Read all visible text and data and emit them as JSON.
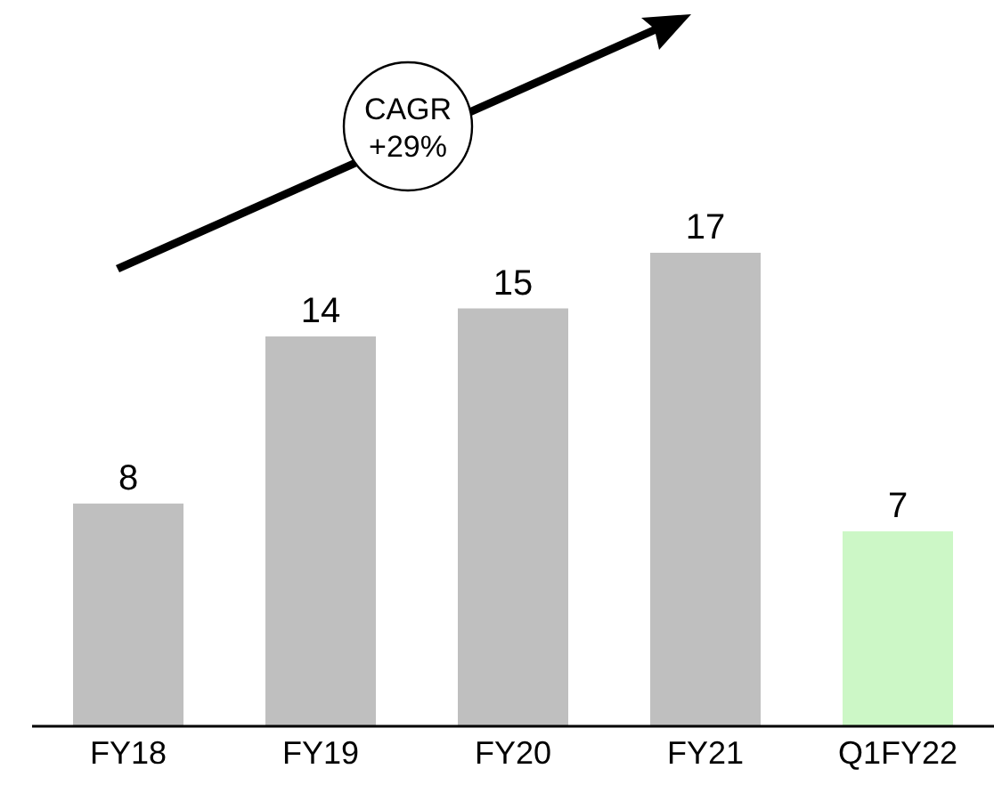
{
  "chart_data": {
    "type": "bar",
    "categories": [
      "FY18",
      "FY19",
      "FY20",
      "FY21",
      "Q1FY22"
    ],
    "values": [
      8,
      14,
      15,
      17,
      7
    ],
    "colors": [
      "#bfbfbf",
      "#bfbfbf",
      "#bfbfbf",
      "#bfbfbf",
      "#ccf7c6"
    ],
    "data_labels": true,
    "annotations": [
      "CAGR +29%"
    ]
  }
}
